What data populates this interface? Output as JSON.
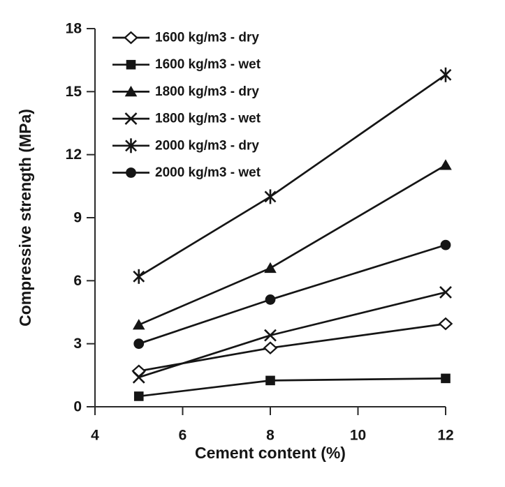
{
  "colors": {
    "ink": "#151515",
    "axis": "#2a2a2a",
    "background": "#ffffff"
  },
  "chart_data": {
    "type": "line",
    "title": "",
    "xlabel": "Cement content (%)",
    "ylabel": "Compressive strength (MPa)",
    "xlim": [
      4,
      12
    ],
    "ylim": [
      0,
      18
    ],
    "x_ticks": [
      4,
      6,
      8,
      10,
      12
    ],
    "y_ticks": [
      0,
      3,
      6,
      9,
      12,
      15,
      18
    ],
    "grid": false,
    "legend_position": "top-left-inside",
    "x": [
      5,
      8,
      12
    ],
    "series": [
      {
        "name": "1600 kg/m3 - dry",
        "marker": "diamond-open",
        "values": [
          1.7,
          2.8,
          3.95
        ]
      },
      {
        "name": "1600 kg/m3 - wet",
        "marker": "square-filled",
        "values": [
          0.5,
          1.25,
          1.35
        ]
      },
      {
        "name": "1800 kg/m3 - dry",
        "marker": "triangle-filled",
        "values": [
          3.9,
          6.6,
          11.5
        ]
      },
      {
        "name": "1800 kg/m3 - wet",
        "marker": "x",
        "values": [
          1.4,
          3.4,
          5.45
        ]
      },
      {
        "name": "2000 kg/m3 - dry",
        "marker": "asterisk",
        "values": [
          6.2,
          10.0,
          15.8
        ]
      },
      {
        "name": "2000 kg/m3 - wet",
        "marker": "circle-filled",
        "values": [
          3.0,
          5.1,
          7.7
        ]
      }
    ]
  }
}
